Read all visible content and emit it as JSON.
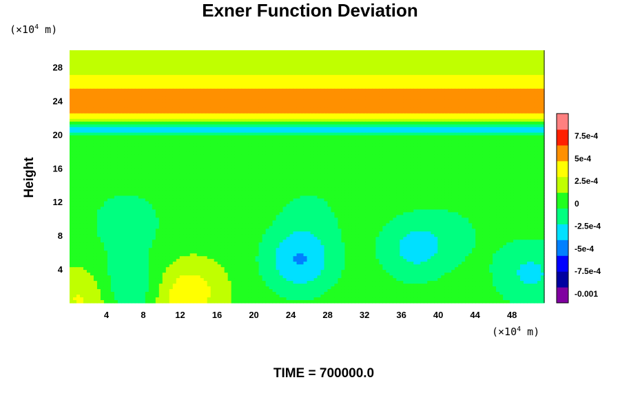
{
  "chart_data": {
    "type": "heatmap",
    "title": "Exner Function Deviation",
    "ylabel": "Height",
    "x_unit_prefix": "(×10",
    "x_unit_exp": "4",
    "x_unit_suffix": " m)",
    "y_unit_prefix": "(×10",
    "y_unit_exp": "4",
    "y_unit_suffix": " m)",
    "footer": "TIME = 700000.0",
    "xlim": [
      0,
      51.5
    ],
    "ylim": [
      0,
      30
    ],
    "x_ticks": [
      4,
      8,
      12,
      16,
      20,
      24,
      28,
      32,
      36,
      40,
      44,
      48
    ],
    "y_ticks": [
      4,
      8,
      12,
      16,
      20,
      24,
      28
    ],
    "colorbar": {
      "range": [
        -0.0011,
        0.001
      ],
      "tick_values": [
        0.00075,
        0.0005,
        0.00025,
        0,
        -0.00025,
        -0.0005,
        -0.00075,
        -0.001
      ],
      "tick_labels": [
        "7.5e-4",
        "5e-4",
        "2.5e-4",
        "0",
        "-2.5e-4",
        "-5e-4",
        "-7.5e-4",
        "-0.001"
      ],
      "colors": [
        "#8000a0",
        "#0000a0",
        "#0000ff",
        "#0080ff",
        "#00e0ff",
        "#00ff80",
        "#20ff20",
        "#c0ff00",
        "#ffff00",
        "#ff9000",
        "#ff2000",
        "#ff8080"
      ]
    },
    "background_profile": [
      {
        "height": 0,
        "value": 4e-05
      },
      {
        "height": 19.8,
        "value": 4e-05
      },
      {
        "height": 20.6,
        "value": -0.00042
      },
      {
        "height": 21.4,
        "value": 0.0001
      },
      {
        "height": 22.6,
        "value": 0.00056
      },
      {
        "height": 23.4,
        "value": 0.00064
      },
      {
        "height": 24.6,
        "value": 0.00055
      },
      {
        "height": 26.2,
        "value": 0.00038
      },
      {
        "height": 28.2,
        "value": 0.00022
      },
      {
        "height": 30,
        "value": 0.0002
      }
    ],
    "anomalies": [
      {
        "x": 25,
        "y": 5,
        "value": -0.00044
      },
      {
        "x": 37.5,
        "y": 6.5,
        "value": -0.00032
      },
      {
        "x": 6.5,
        "y": 1.8,
        "value": -0.0003
      },
      {
        "x": 6.2,
        "y": 9.5,
        "value": -0.0002
      },
      {
        "x": 50,
        "y": 3.5,
        "value": -0.0003
      },
      {
        "x": 26,
        "y": 10.5,
        "value": -0.00012
      },
      {
        "x": 42,
        "y": 8.3,
        "value": -0.0001
      },
      {
        "x": 1.5,
        "y": 0.5,
        "value": 0.0003
      },
      {
        "x": 12,
        "y": 0.6,
        "value": 0.0003
      },
      {
        "x": 14,
        "y": 2,
        "value": 0.00014
      }
    ]
  }
}
